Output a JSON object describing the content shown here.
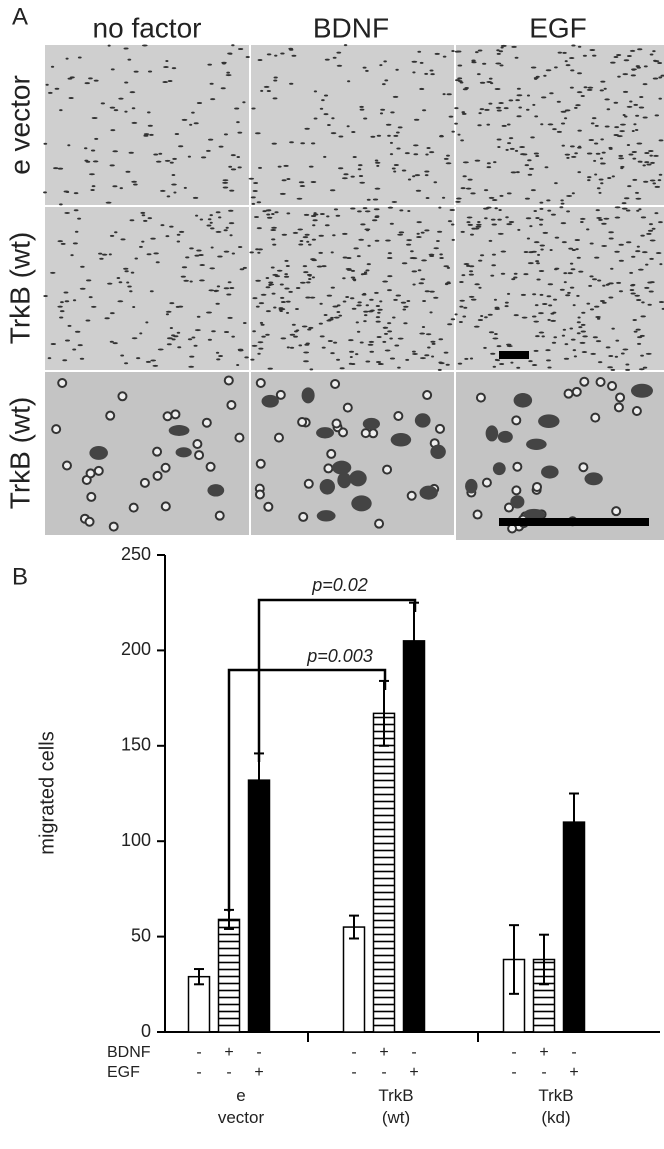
{
  "panel_a": {
    "label": "A",
    "columns": [
      "no factor",
      "BDNF",
      "EGF"
    ],
    "rows": [
      "e vector",
      "TrkB (wt)",
      "TrkB (wt)"
    ]
  },
  "chart_data": {
    "type": "bar",
    "panel_label": "B",
    "y_label": "migrated cells",
    "categories": [
      "e vector",
      "TrkB (wt)",
      "TrkB (kd)"
    ],
    "series": [
      {
        "color": "#ffffff",
        "values": [
          29,
          55,
          38
        ],
        "errors": [
          4,
          6,
          18
        ]
      },
      {
        "color": "#ffffff",
        "hatch": "horizontal",
        "values": [
          59,
          167,
          38
        ],
        "errors": [
          5,
          17,
          13
        ]
      },
      {
        "color": "#000000",
        "values": [
          132,
          205,
          110
        ],
        "errors": [
          14,
          20,
          15
        ]
      }
    ],
    "ylim": [
      0,
      250
    ],
    "yticks": [
      0,
      50,
      100,
      150,
      200,
      250
    ],
    "conditions": [
      {
        "label": "BDNF",
        "signs": [
          "-",
          "+",
          "-",
          "-",
          "+",
          "-",
          "-",
          "+",
          "-"
        ]
      },
      {
        "label": "EGF",
        "signs": [
          "-",
          "-",
          "+",
          "-",
          "-",
          "+",
          "-",
          "-",
          "+"
        ]
      }
    ],
    "annotations": [
      "p=0.003",
      "p=0.02"
    ]
  }
}
